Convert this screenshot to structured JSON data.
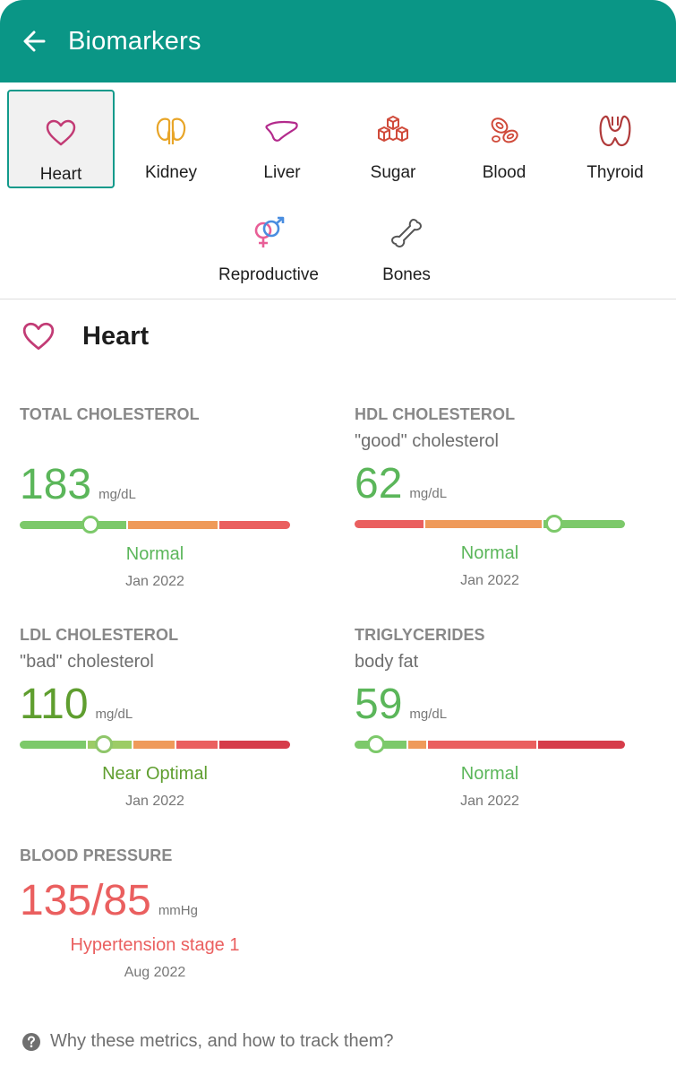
{
  "header": {
    "title": "Biomarkers",
    "back_icon": "arrow-left-icon",
    "color": "#0a9686"
  },
  "categories": [
    {
      "label": "Heart",
      "icon": "heart-icon",
      "color": "#c23b75",
      "selected": true
    },
    {
      "label": "Kidney",
      "icon": "kidney-icon",
      "color": "#e8a528",
      "selected": false
    },
    {
      "label": "Liver",
      "icon": "liver-icon",
      "color": "#b32a8c",
      "selected": false
    },
    {
      "label": "Sugar",
      "icon": "sugar-cubes-icon",
      "color": "#d04a3a",
      "selected": false
    },
    {
      "label": "Blood",
      "icon": "blood-cells-icon",
      "color": "#d04a3a",
      "selected": false
    },
    {
      "label": "Thyroid",
      "icon": "thyroid-icon",
      "color": "#b03a3a",
      "selected": false
    },
    {
      "label": "Reproductive",
      "icon": "gender-icon",
      "color": "#e85f97",
      "selected": false
    },
    {
      "label": "Bones",
      "icon": "bone-icon",
      "color": "#555555",
      "selected": false
    }
  ],
  "section": {
    "title": "Heart",
    "icon": "heart-icon"
  },
  "metrics": [
    {
      "name": "TOTAL CHOLESTEROL",
      "subtitle": "",
      "value": "183",
      "unit": "mg/dL",
      "status": "Normal",
      "date": "Jan 2022",
      "value_color": "#5bb65a",
      "status_color": "#5bb65a",
      "gauge": {
        "position": 0.26,
        "knob_color": "#7cc96a",
        "segments": [
          {
            "share": 0.4,
            "color": "#7cc96a"
          },
          {
            "share": 0.34,
            "color": "#ef9a5a"
          },
          {
            "share": 0.26,
            "color": "#ea5f5f"
          }
        ]
      }
    },
    {
      "name": "HDL CHOLESTEROL",
      "subtitle": "\"good\" cholesterol",
      "value": "62",
      "unit": "mg/dL",
      "status": "Normal",
      "date": "Jan 2022",
      "value_color": "#5bb65a",
      "status_color": "#5bb65a",
      "gauge": {
        "position": 0.74,
        "knob_color": "#7cc96a",
        "segments": [
          {
            "share": 0.26,
            "color": "#ea5f5f"
          },
          {
            "share": 0.44,
            "color": "#ef9a5a"
          },
          {
            "share": 0.3,
            "color": "#7cc96a"
          }
        ]
      }
    },
    {
      "name": "LDL CHOLESTEROL",
      "subtitle": "\"bad\" cholesterol",
      "value": "110",
      "unit": "mg/dL",
      "status": "Near Optimal",
      "date": "Jan 2022",
      "value_color": "#5f9e2f",
      "status_color": "#5f9e2f",
      "gauge": {
        "position": 0.31,
        "knob_color": "#8fc66a",
        "segments": [
          {
            "share": 0.25,
            "color": "#7cc96a"
          },
          {
            "share": 0.17,
            "color": "#9ccc65"
          },
          {
            "share": 0.16,
            "color": "#ef9a5a"
          },
          {
            "share": 0.16,
            "color": "#ea5f5f"
          },
          {
            "share": 0.26,
            "color": "#d63c4a"
          }
        ]
      }
    },
    {
      "name": "TRIGLYCERIDES",
      "subtitle": "body fat",
      "value": "59",
      "unit": "mg/dL",
      "status": "Normal",
      "date": "Jan 2022",
      "value_color": "#5bb65a",
      "status_color": "#5bb65a",
      "gauge": {
        "position": 0.08,
        "knob_color": "#7cc96a",
        "segments": [
          {
            "share": 0.2,
            "color": "#7cc96a"
          },
          {
            "share": 0.07,
            "color": "#ef9a5a"
          },
          {
            "share": 0.41,
            "color": "#ea5f5f"
          },
          {
            "share": 0.32,
            "color": "#d63c4a"
          }
        ]
      }
    },
    {
      "name": "BLOOD PRESSURE",
      "subtitle": "",
      "value": "135/85",
      "unit": "mmHg",
      "status": "Hypertension stage 1",
      "date": "Aug 2022",
      "value_color": "#ea5f5f",
      "status_color": "#ea5f5f",
      "gauge": null
    }
  ],
  "help": {
    "text": "Why these metrics, and how to track them?",
    "icon": "question-circle-icon"
  }
}
